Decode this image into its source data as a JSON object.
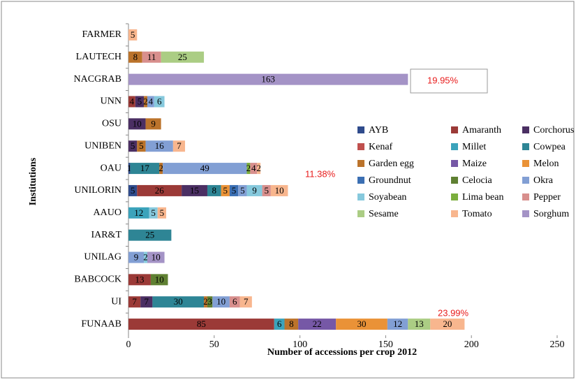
{
  "chart_data": {
    "type": "stacked-barh",
    "xlabel": "Number of accessions per crop 2012",
    "ylabel": "Institutions",
    "categories": [
      "FARMER",
      "LAUTECH",
      "NACGRAB",
      "UNN",
      "OSU",
      "UNIBEN",
      "OAU",
      "UNILORIN",
      "AAUO",
      "IAR&T",
      "UNILAG",
      "BABCOCK",
      "UI",
      "FUNAAB"
    ],
    "series": [
      {
        "name": "AYB",
        "color": "#2f4b8c",
        "values": [
          null,
          null,
          null,
          null,
          null,
          null,
          1,
          5,
          null,
          null,
          null,
          null,
          null,
          null
        ]
      },
      {
        "name": "Amaranth",
        "color": "#9b3a37",
        "values": [
          null,
          null,
          null,
          4,
          null,
          null,
          null,
          26,
          null,
          null,
          null,
          13,
          7,
          85
        ]
      },
      {
        "name": "Corchorus",
        "color": "#4b2f63",
        "values": [
          null,
          null,
          null,
          5,
          10,
          5,
          null,
          15,
          null,
          null,
          null,
          null,
          7,
          null
        ]
      },
      {
        "name": "Kenaf",
        "color": "#c0504d",
        "values": [
          null,
          null,
          null,
          null,
          null,
          null,
          null,
          null,
          null,
          null,
          null,
          null,
          null,
          null
        ]
      },
      {
        "name": "Millet",
        "color": "#3ba3bb",
        "values": [
          null,
          null,
          null,
          null,
          null,
          null,
          null,
          null,
          12,
          null,
          null,
          null,
          null,
          6
        ]
      },
      {
        "name": "Cowpea",
        "color": "#2e8595",
        "values": [
          null,
          null,
          null,
          null,
          null,
          null,
          17,
          8,
          null,
          25,
          null,
          null,
          30,
          null
        ]
      },
      {
        "name": "Garden egg",
        "color": "#bb732b",
        "values": [
          null,
          8,
          null,
          2,
          9,
          5,
          2,
          null,
          null,
          null,
          null,
          null,
          2,
          8
        ]
      },
      {
        "name": "Maize",
        "color": "#7658a6",
        "values": [
          null,
          null,
          null,
          null,
          null,
          null,
          null,
          null,
          null,
          null,
          null,
          null,
          null,
          22
        ]
      },
      {
        "name": "Melon",
        "color": "#ea9237",
        "values": [
          null,
          null,
          null,
          null,
          null,
          null,
          null,
          5,
          null,
          null,
          null,
          null,
          null,
          30
        ]
      },
      {
        "name": "Groundnut",
        "color": "#3b6fb3",
        "values": [
          null,
          null,
          null,
          null,
          null,
          null,
          null,
          5,
          null,
          null,
          null,
          null,
          null,
          null
        ]
      },
      {
        "name": "Celocia",
        "color": "#5f8032",
        "values": [
          null,
          null,
          null,
          null,
          null,
          null,
          null,
          null,
          null,
          null,
          null,
          10,
          3,
          null
        ]
      },
      {
        "name": "Okra",
        "color": "#829fd4",
        "values": [
          null,
          null,
          null,
          4,
          null,
          16,
          49,
          5,
          null,
          null,
          9,
          null,
          10,
          12
        ]
      },
      {
        "name": "Soyabean",
        "color": "#86c9dd",
        "values": [
          null,
          null,
          null,
          6,
          null,
          null,
          null,
          9,
          5,
          null,
          2,
          null,
          null,
          null
        ]
      },
      {
        "name": "Lima bean",
        "color": "#7bae3d",
        "values": [
          null,
          null,
          null,
          null,
          null,
          null,
          2,
          null,
          null,
          null,
          null,
          null,
          null,
          null
        ]
      },
      {
        "name": "Pepper",
        "color": "#d88f8d",
        "values": [
          null,
          11,
          null,
          null,
          null,
          null,
          4,
          5,
          null,
          null,
          null,
          null,
          6,
          null
        ]
      },
      {
        "name": "Sesame",
        "color": "#abcd84",
        "values": [
          null,
          25,
          null,
          null,
          null,
          null,
          null,
          null,
          null,
          null,
          null,
          null,
          null,
          13
        ]
      },
      {
        "name": "Tomato",
        "color": "#f8b68e",
        "values": [
          5,
          null,
          null,
          null,
          null,
          7,
          2,
          10,
          5,
          null,
          null,
          null,
          7,
          20
        ]
      },
      {
        "name": "Sorghum",
        "color": "#a493c6",
        "values": [
          null,
          null,
          163,
          null,
          null,
          null,
          null,
          null,
          null,
          null,
          10,
          null,
          null,
          null
        ]
      }
    ],
    "xlim": [
      0,
      250
    ],
    "xticks": [
      0,
      50,
      100,
      150,
      200,
      250
    ],
    "annotations": [
      "19.95%",
      "11.38%",
      "23.99%"
    ]
  }
}
